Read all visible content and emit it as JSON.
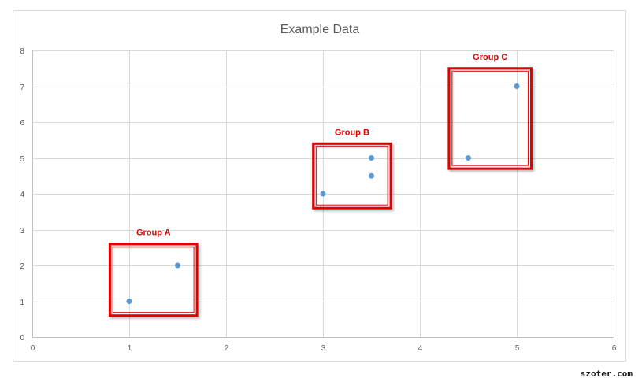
{
  "chart_data": {
    "type": "scatter",
    "title": "Example Data",
    "xlabel": "",
    "ylabel": "",
    "xlim": [
      0,
      6
    ],
    "ylim": [
      0,
      8
    ],
    "x_ticks": [
      0,
      1,
      2,
      3,
      4,
      5,
      6
    ],
    "y_ticks": [
      0,
      1,
      2,
      3,
      4,
      5,
      6,
      7,
      8
    ],
    "grid": true,
    "legend": "none",
    "series": [
      {
        "color": "#5b9bd5",
        "points": [
          {
            "x": 1,
            "y": 1
          },
          {
            "x": 1.5,
            "y": 2
          },
          {
            "x": 3,
            "y": 4
          },
          {
            "x": 3.5,
            "y": 4.5
          },
          {
            "x": 3.5,
            "y": 5
          },
          {
            "x": 4.5,
            "y": 5
          },
          {
            "x": 5,
            "y": 7
          }
        ]
      }
    ],
    "annotations": [
      {
        "label": "Group A",
        "color": "#e00000",
        "x_range": [
          0.8,
          1.7
        ],
        "y_range": [
          0.6,
          2.6
        ]
      },
      {
        "label": "Group B",
        "color": "#e00000",
        "x_range": [
          2.9,
          3.7
        ],
        "y_range": [
          3.6,
          5.4
        ]
      },
      {
        "label": "Group C",
        "color": "#e00000",
        "x_range": [
          4.3,
          5.15
        ],
        "y_range": [
          4.7,
          7.5
        ]
      }
    ]
  },
  "watermark": "szoter.com"
}
